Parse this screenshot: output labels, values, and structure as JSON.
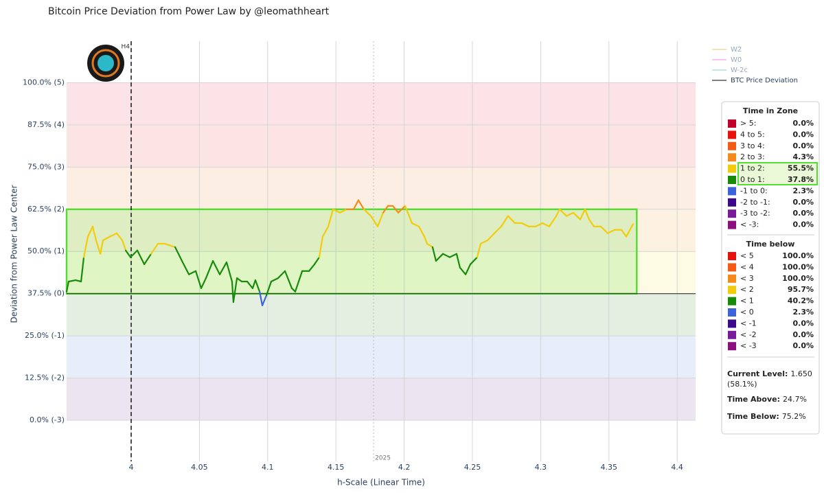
{
  "chart_data": {
    "type": "line",
    "title": "Bitcoin Price Deviation from Power Law by @leomathheart",
    "xlabel": "h-Scale (Linear Time)",
    "ylabel": "Deviation from Power Law Center",
    "xlim": [
      3.9527,
      4.4135
    ],
    "ylim": [
      -12.2,
      112.3
    ],
    "xticks": [
      4,
      4.05,
      4.1,
      4.15,
      4.2,
      4.25,
      4.3,
      4.35,
      4.4
    ],
    "yticks": [
      {
        "value": 0,
        "label": "0.0% (-3)"
      },
      {
        "value": 12.5,
        "label": "12.5% (-2)"
      },
      {
        "value": 25,
        "label": "25.0% (-1)"
      },
      {
        "value": 37.5,
        "label": "37.5% (0)"
      },
      {
        "value": 50,
        "label": "50.0% (1)"
      },
      {
        "value": 62.5,
        "label": "62.5% (2)"
      },
      {
        "value": 75,
        "label": "75.0% (3)"
      },
      {
        "value": 87.5,
        "label": "87.5% (4)"
      },
      {
        "value": 100,
        "label": "100.0% (5)"
      }
    ],
    "bands": [
      "#ece4f1",
      "#e8edfa",
      "#e4efe1",
      "#fefbe4",
      "#fdf2e2",
      "#fdeee3",
      "#fde4e4",
      "#fbe3e8"
    ],
    "grid": true,
    "highlight": {
      "x": [
        3.9527,
        4.3704
      ],
      "y": [
        37.5,
        62.5
      ],
      "color": "#55dd33"
    },
    "baseline": 37.5,
    "vlines": [
      {
        "x": 4,
        "label": "H4",
        "style": "dashed"
      },
      {
        "x": 4.1776,
        "label": "2025",
        "style": "dotted"
      }
    ],
    "x": [
      3.9527,
      3.9542,
      3.9593,
      3.9633,
      3.9653,
      3.9683,
      3.9718,
      3.9743,
      3.9774,
      3.9794,
      3.9844,
      3.9894,
      3.9935,
      3.996,
      3.9995,
      4.0045,
      4.0096,
      4.0146,
      4.0196,
      4.0246,
      4.0322,
      4.0372,
      4.0423,
      4.0473,
      4.0513,
      4.0548,
      4.0599,
      4.0649,
      4.0699,
      4.0739,
      4.0749,
      4.0775,
      4.081,
      4.085,
      4.089,
      4.091,
      4.0941,
      4.0961,
      4.0991,
      4.1026,
      4.1076,
      4.1127,
      4.1177,
      4.1202,
      4.1253,
      4.1303,
      4.1343,
      4.1378,
      4.1403,
      4.1444,
      4.1479,
      4.1529,
      4.1579,
      4.163,
      4.1665,
      4.1705,
      4.1756,
      4.1806,
      4.1846,
      4.1881,
      4.1917,
      4.1957,
      4.2007,
      4.2057,
      4.2108,
      4.2148,
      4.2168,
      4.2208,
      4.2233,
      4.2284,
      4.2334,
      4.2384,
      4.2409,
      4.245,
      4.2485,
      4.2535,
      4.256,
      4.2611,
      4.2661,
      4.2711,
      4.2761,
      4.2812,
      4.2862,
      4.2912,
      4.2963,
      4.3013,
      4.3063,
      4.3114,
      4.3139,
      4.3189,
      4.3239,
      4.329,
      4.3325,
      4.3355,
      4.339,
      4.3441,
      4.3491,
      4.3541,
      4.3592,
      4.3627,
      4.3677
    ],
    "series": [
      {
        "name": "BTC Price Deviation",
        "color": "#555555",
        "values": [
          38.1,
          41.1,
          41.5,
          41.1,
          48.3,
          54.4,
          57.4,
          53.3,
          49.3,
          53.3,
          54.4,
          55.4,
          53.3,
          50.3,
          48.3,
          50.3,
          46.2,
          49.3,
          52.3,
          52.3,
          51.3,
          47.2,
          43.2,
          44.2,
          39.1,
          42.1,
          47.2,
          43.2,
          46.8,
          41.1,
          35.0,
          42.1,
          41.1,
          41.1,
          39.1,
          41.5,
          38.1,
          34.0,
          37.0,
          41.1,
          42.1,
          44.2,
          39.1,
          38.1,
          44.2,
          44.2,
          46.2,
          48.3,
          54.4,
          57.4,
          62.5,
          61.5,
          62.5,
          62.5,
          65.2,
          62.5,
          60.5,
          57.4,
          61.5,
          63.5,
          63.5,
          61.5,
          63.5,
          58.4,
          57.4,
          54.4,
          52.3,
          51.3,
          47.2,
          49.3,
          48.3,
          49.3,
          45.2,
          43.2,
          46.2,
          48.3,
          52.3,
          53.3,
          55.4,
          57.4,
          60.5,
          58.4,
          58.4,
          57.4,
          57.4,
          58.4,
          57.4,
          60.5,
          62.5,
          60.5,
          61.5,
          59.5,
          62.5,
          59.5,
          57.4,
          57.4,
          55.4,
          56.4,
          56.4,
          54.4,
          58.1
        ]
      }
    ],
    "hidden_series": [
      {
        "name": "W2",
        "color": "#e8c15a"
      },
      {
        "name": "W0",
        "color": "#f07cf0"
      },
      {
        "name": "W-2c",
        "color": "#7ccfc0"
      }
    ]
  },
  "panel": {
    "zone_title": "Time in Zone",
    "zones": [
      {
        "label": "> 5:",
        "value": "0.0%",
        "color": "#c0002a"
      },
      {
        "label": "4 to 5:",
        "value": "0.0%",
        "color": "#e8120c"
      },
      {
        "label": "3 to 4:",
        "value": "0.0%",
        "color": "#f55a14"
      },
      {
        "label": "2 to 3:",
        "value": "4.3%",
        "color": "#f58a1a"
      },
      {
        "label": "1 to 2:",
        "value": "55.5%",
        "color": "#f2cc0c"
      },
      {
        "label": "0 to 1:",
        "value": "37.8%",
        "color": "#178a0a"
      },
      {
        "label": "-1 to 0:",
        "value": "2.3%",
        "color": "#3c64d8"
      },
      {
        "label": "-2 to -1:",
        "value": "0.0%",
        "color": "#3a0a8a"
      },
      {
        "label": "-3 to -2:",
        "value": "0.0%",
        "color": "#7a1a9a"
      },
      {
        "label": "< -3:",
        "value": "0.0%",
        "color": "#8a1080"
      }
    ],
    "below_title": "Time below",
    "below": [
      {
        "label": "< 5",
        "value": "100.0%",
        "color": "#e8120c"
      },
      {
        "label": "< 4",
        "value": "100.0%",
        "color": "#f55a14"
      },
      {
        "label": "< 3",
        "value": "100.0%",
        "color": "#f58a1a"
      },
      {
        "label": "< 2",
        "value": "95.7%",
        "color": "#f2cc0c"
      },
      {
        "label": "< 1",
        "value": "40.2%",
        "color": "#178a0a"
      },
      {
        "label": "< 0",
        "value": "2.3%",
        "color": "#3c64d8"
      },
      {
        "label": "< -1",
        "value": "0.0%",
        "color": "#3a0a8a"
      },
      {
        "label": "< -2",
        "value": "0.0%",
        "color": "#7a1a9a"
      },
      {
        "label": "< -3",
        "value": "0.0%",
        "color": "#8a1080"
      }
    ],
    "current_label": "Current Level:",
    "current_value": "1.650",
    "current_pct": "(58.1%)",
    "above_label": "Time Above:",
    "above_value": "24.7%",
    "below_label": "Time Below:",
    "below_value": "75.2%"
  }
}
